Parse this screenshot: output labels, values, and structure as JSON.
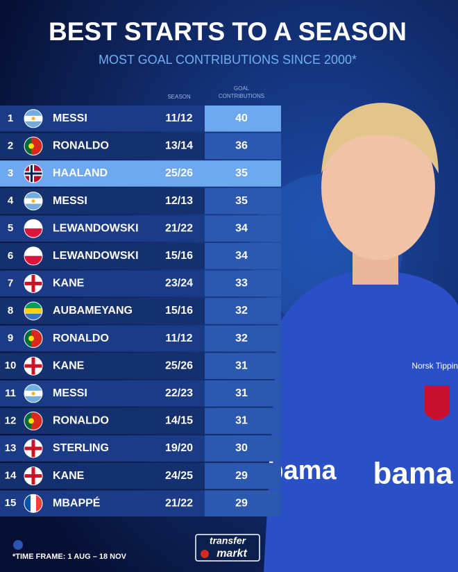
{
  "header": {
    "title": "BEST STARTS TO A SEASON",
    "subtitle": "MOST GOAL CONTRIBUTIONS SINCE 2000*"
  },
  "table": {
    "columns": [
      "SEASON",
      "GOAL CONTRIBUTIONS"
    ],
    "rows": [
      [
        1,
        "MESSI",
        "11/12",
        40
      ],
      [
        2,
        "RONALDO",
        "13/14",
        36
      ],
      [
        3,
        "HAALAND",
        "25/26",
        35
      ],
      [
        4,
        "MESSI",
        "12/13",
        35
      ],
      [
        5,
        "LEWANDOWSKI",
        "21/22",
        34
      ],
      [
        6,
        "LEWANDOWSKI",
        "15/16",
        34
      ],
      [
        7,
        "KANE",
        "23/24",
        33
      ],
      [
        8,
        "AUBAMEYANG",
        "15/16",
        32
      ],
      [
        9,
        "RONALDO",
        "11/12",
        32
      ],
      [
        10,
        "KANE",
        "25/26",
        31
      ],
      [
        11,
        "MESSI",
        "22/23",
        31
      ],
      [
        12,
        "RONALDO",
        "14/15",
        31
      ],
      [
        13,
        "STERLING",
        "19/20",
        30
      ],
      [
        14,
        "KANE",
        "24/25",
        29
      ],
      [
        15,
        "MBAPPÉ",
        "21/22",
        29
      ]
    ]
  },
  "photo_texts": [
    "Norsk Tipping",
    "bama",
    "bama"
  ],
  "footer": {
    "note": "*TIME FRAME: 1 AUG – 18 NOV",
    "logo": [
      "transfer",
      "markt"
    ]
  }
}
